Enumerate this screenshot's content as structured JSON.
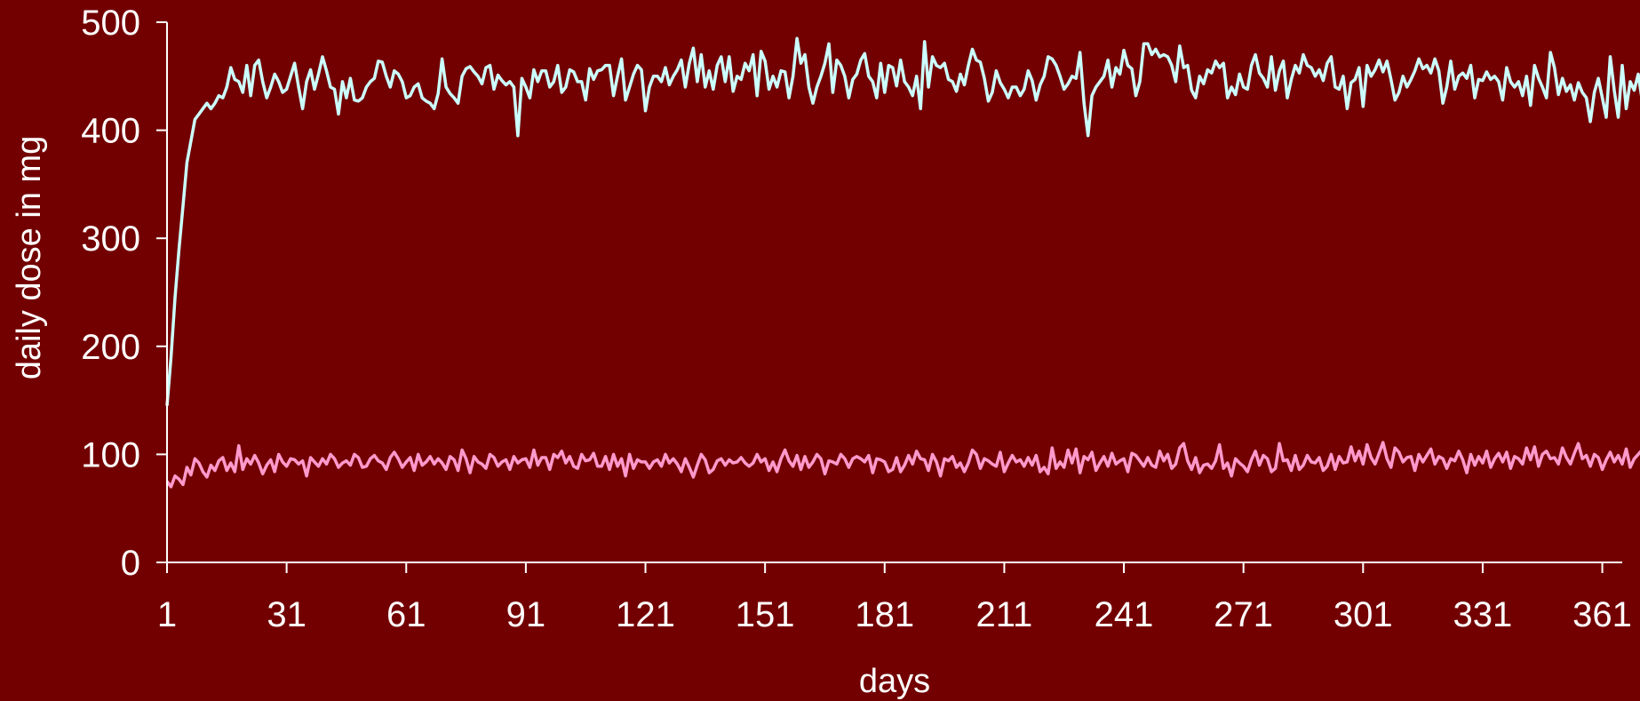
{
  "background_color": "#730000",
  "axis_color": "#ffffff",
  "chart_data": {
    "type": "line",
    "title": "",
    "xlabel": "days",
    "ylabel": "daily dose in mg",
    "xlim": [
      1,
      366
    ],
    "ylim": [
      0,
      500
    ],
    "x_ticks": [
      1,
      31,
      61,
      91,
      121,
      151,
      181,
      211,
      241,
      271,
      301,
      331,
      361
    ],
    "y_ticks": [
      0,
      100,
      200,
      300,
      400,
      500
    ],
    "grid": false,
    "legend": "none",
    "x_start": 1,
    "x_step": 1,
    "series": [
      {
        "color": "#ccffff",
        "values": [
          145,
          190,
          245,
          290,
          330,
          370,
          390,
          410,
          415,
          420,
          425,
          420,
          425,
          432,
          430,
          440,
          458,
          447,
          445,
          435,
          460,
          432,
          460,
          465,
          445,
          430,
          440,
          452,
          445,
          435,
          438,
          450,
          462,
          440,
          420,
          445,
          456,
          438,
          452,
          468,
          455,
          440,
          438,
          415,
          445,
          430,
          448,
          428,
          427,
          430,
          440,
          445,
          448,
          464,
          463,
          450,
          440,
          455,
          452,
          445,
          430,
          432,
          440,
          443,
          430,
          427,
          425,
          420,
          434,
          466,
          440,
          434,
          430,
          425,
          450,
          457,
          459,
          454,
          450,
          443,
          458,
          460,
          438,
          451,
          446,
          442,
          445,
          440,
          395,
          448,
          440,
          430,
          456,
          445,
          455,
          455,
          440,
          445,
          460,
          435,
          440,
          456,
          454,
          445,
          445,
          428,
          457,
          447,
          455,
          456,
          460,
          460,
          432,
          450,
          466,
          428,
          440,
          452,
          460,
          456,
          418,
          440,
          450,
          450,
          445,
          458,
          442,
          450,
          456,
          465,
          440,
          462,
          476,
          445,
          470,
          440,
          455,
          438,
          460,
          468,
          445,
          468,
          436,
          450,
          447,
          462,
          455,
          470,
          432,
          473,
          464,
          438,
          450,
          440,
          455,
          454,
          430,
          450,
          485,
          462,
          470,
          440,
          425,
          440,
          450,
          462,
          480,
          435,
          465,
          460,
          450,
          430,
          447,
          452,
          465,
          471,
          450,
          445,
          430,
          462,
          435,
          460,
          458,
          441,
          465,
          445,
          440,
          432,
          450,
          420,
          482,
          440,
          468,
          460,
          458,
          462,
          447,
          445,
          436,
          452,
          442,
          460,
          475,
          465,
          463,
          448,
          427,
          435,
          455,
          444,
          438,
          430,
          440,
          440,
          432,
          438,
          455,
          446,
          428,
          442,
          450,
          468,
          466,
          460,
          450,
          438,
          443,
          450,
          448,
          472,
          425,
          395,
          432,
          440,
          445,
          450,
          465,
          440,
          458,
          452,
          474,
          460,
          457,
          432,
          445,
          480,
          480,
          470,
          475,
          468,
          470,
          468,
          460,
          445,
          478,
          458,
          460,
          437,
          430,
          450,
          443,
          456,
          453,
          464,
          458,
          462,
          430,
          440,
          433,
          452,
          440,
          438,
          460,
          470,
          453,
          448,
          440,
          468,
          437,
          455,
          464,
          430,
          447,
          460,
          453,
          470,
          460,
          458,
          450,
          456,
          446,
          462,
          468,
          440,
          438,
          450,
          420,
          444,
          447,
          458,
          422,
          460,
          450,
          456,
          465,
          454,
          464,
          447,
          428,
          435,
          450,
          440,
          447,
          455,
          466,
          457,
          460,
          453,
          466,
          455,
          425,
          440,
          464,
          438,
          450,
          453,
          448,
          460,
          430,
          447,
          446,
          454,
          447,
          450,
          445,
          428,
          458,
          445,
          440,
          445,
          432,
          450,
          423,
          460,
          448,
          440,
          430,
          472,
          458,
          433,
          448,
          436,
          442,
          428,
          444,
          435,
          430,
          408,
          435,
          448,
          430,
          412,
          468,
          437,
          412,
          460,
          420,
          445,
          437,
          452,
          428,
          412
        ]
      },
      {
        "color": "#ff99cc",
        "values": [
          75,
          70,
          80,
          77,
          72,
          88,
          81,
          96,
          92,
          84,
          79,
          90,
          85,
          94,
          97,
          85,
          92,
          84,
          108,
          86,
          96,
          91,
          99,
          92,
          82,
          90,
          95,
          84,
          100,
          93,
          89,
          96,
          95,
          91,
          94,
          80,
          97,
          93,
          89,
          96,
          91,
          100,
          96,
          88,
          92,
          94,
          90,
          100,
          97,
          88,
          89,
          96,
          99,
          94,
          92,
          86,
          97,
          102,
          96,
          88,
          93,
          97,
          85,
          100,
          90,
          93,
          98,
          91,
          96,
          92,
          86,
          98,
          95,
          85,
          104,
          96,
          83,
          98,
          93,
          91,
          87,
          100,
          97,
          89,
          93,
          95,
          86,
          98,
          92,
          95,
          96,
          88,
          104,
          90,
          97,
          97,
          86,
          100,
          97,
          103,
          92,
          98,
          89,
          87,
          100,
          94,
          95,
          101,
          89,
          89,
          98,
          86,
          100,
          89,
          96,
          80,
          100,
          87,
          95,
          93,
          93,
          87,
          93,
          95,
          89,
          100,
          92,
          96,
          91,
          84,
          96,
          88,
          79,
          90,
          100,
          95,
          83,
          86,
          94,
          96,
          90,
          95,
          92,
          93,
          97,
          92,
          89,
          92,
          100,
          93,
          96,
          85,
          93,
          84,
          96,
          104,
          94,
          89,
          99,
          86,
          98,
          88,
          93,
          100,
          96,
          82,
          94,
          93,
          91,
          100,
          96,
          88,
          96,
          98,
          96,
          93,
          99,
          83,
          96,
          95,
          93,
          84,
          86,
          97,
          84,
          90,
          99,
          91,
          103,
          96,
          95,
          85,
          100,
          93,
          80,
          96,
          94,
          98,
          88,
          92,
          84,
          92,
          104,
          100,
          87,
          96,
          94,
          91,
          89,
          102,
          84,
          92,
          99,
          93,
          95,
          89,
          97,
          90,
          99,
          84,
          88,
          82,
          106,
          87,
          93,
          88,
          104,
          92,
          105,
          83,
          98,
          95,
          102,
          85,
          92,
          98,
          89,
          101,
          91,
          94,
          96,
          84,
          101,
          99,
          94,
          89,
          97,
          90,
          88,
          103,
          94,
          100,
          87,
          91,
          106,
          110,
          94,
          86,
          97,
          83,
          90,
          91,
          87,
          94,
          109,
          87,
          92,
          80,
          96,
          92,
          89,
          84,
          95,
          103,
          90,
          99,
          96,
          84,
          87,
          110,
          94,
          95,
          85,
          99,
          86,
          90,
          99,
          93,
          92,
          97,
          85,
          89,
          100,
          86,
          98,
          92,
          93,
          107,
          94,
          103,
          91,
          109,
          97,
          91,
          101,
          111,
          96,
          88,
          106,
          102,
          93,
          97,
          98,
          85,
          100,
          93,
          99,
          105,
          91,
          98,
          96,
          87,
          96,
          94,
          103,
          95,
          83,
          100,
          90,
          98,
          92,
          103,
          88,
          96,
          101,
          93,
          102,
          87,
          98,
          96,
          91,
          106,
          95,
          107,
          89,
          100,
          103,
          96,
          97,
          91,
          106,
          97,
          91,
          101,
          110,
          96,
          99,
          89,
          100,
          97,
          86,
          95,
          102,
          93,
          99,
          91,
          105,
          88,
          96,
          100,
          104,
          94,
          98,
          90,
          99,
          95,
          89
        ]
      }
    ]
  }
}
